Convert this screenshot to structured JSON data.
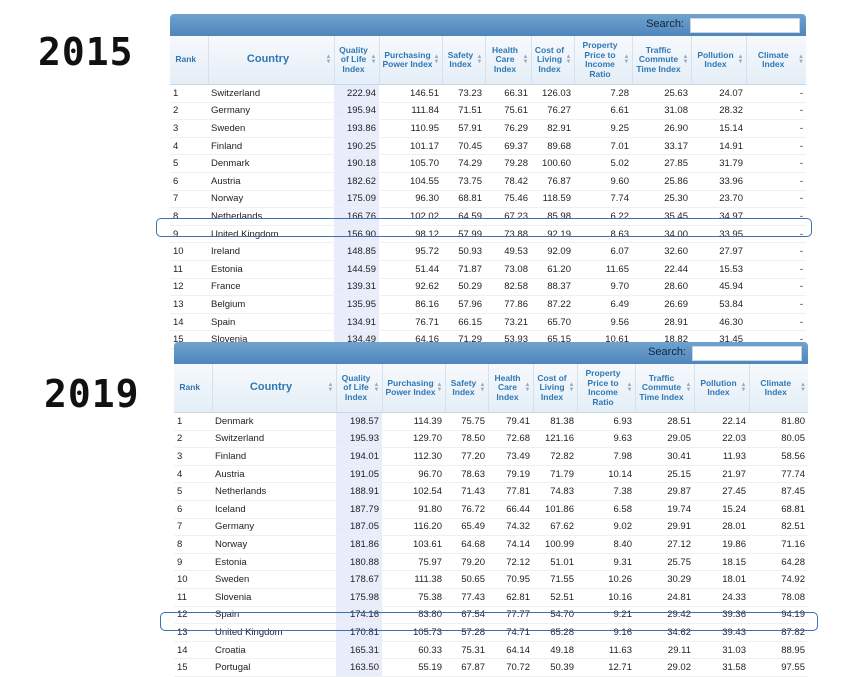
{
  "years": [
    "2015",
    "2019"
  ],
  "search_label": "Search:",
  "columns": [
    {
      "key": "rank",
      "label": "Rank",
      "sortable": false
    },
    {
      "key": "country",
      "label": "Country",
      "sortable": true
    },
    {
      "key": "qol",
      "label": "Quality of Life Index",
      "sortable": true
    },
    {
      "key": "ppi",
      "label": "Purchasing Power Index",
      "sortable": true
    },
    {
      "key": "safety",
      "label": "Safety Index",
      "sortable": true
    },
    {
      "key": "health",
      "label": "Health Care Index",
      "sortable": true
    },
    {
      "key": "col",
      "label": "Cost of Living Index",
      "sortable": true
    },
    {
      "key": "ppti",
      "label": "Property Price to Income Ratio",
      "sortable": true
    },
    {
      "key": "traffic",
      "label": "Traffic Commute Time Index",
      "sortable": true
    },
    {
      "key": "pollution",
      "label": "Pollution Index",
      "sortable": true
    },
    {
      "key": "climate",
      "label": "Climate Index",
      "sortable": true
    }
  ],
  "tables": [
    {
      "year": "2015",
      "highlight_row": 9,
      "rows": [
        [
          "1",
          "Switzerland",
          "222.94",
          "146.51",
          "73.23",
          "66.31",
          "126.03",
          "7.28",
          "25.63",
          "24.07",
          "-"
        ],
        [
          "2",
          "Germany",
          "195.94",
          "111.84",
          "71.51",
          "75.61",
          "76.27",
          "6.61",
          "31.08",
          "28.32",
          "-"
        ],
        [
          "3",
          "Sweden",
          "193.86",
          "110.95",
          "57.91",
          "76.29",
          "82.91",
          "9.25",
          "26.90",
          "15.14",
          "-"
        ],
        [
          "4",
          "Finland",
          "190.25",
          "101.17",
          "70.45",
          "69.37",
          "89.68",
          "7.01",
          "33.17",
          "14.91",
          "-"
        ],
        [
          "5",
          "Denmark",
          "190.18",
          "105.70",
          "74.29",
          "79.28",
          "100.60",
          "5.02",
          "27.85",
          "31.79",
          "-"
        ],
        [
          "6",
          "Austria",
          "182.62",
          "104.55",
          "73.75",
          "78.42",
          "76.87",
          "9.60",
          "25.86",
          "33.96",
          "-"
        ],
        [
          "7",
          "Norway",
          "175.09",
          "96.30",
          "68.81",
          "75.46",
          "118.59",
          "7.74",
          "25.30",
          "23.70",
          "-"
        ],
        [
          "8",
          "Netherlands",
          "166.76",
          "102.02",
          "64.59",
          "67.23",
          "85.98",
          "6.22",
          "35.45",
          "34.97",
          "-"
        ],
        [
          "9",
          "United Kingdom",
          "156.90",
          "98.12",
          "57.99",
          "73.88",
          "92.19",
          "8.63",
          "34.00",
          "33.95",
          "-"
        ],
        [
          "10",
          "Ireland",
          "148.85",
          "95.72",
          "50.93",
          "49.53",
          "92.09",
          "6.07",
          "32.60",
          "27.97",
          "-"
        ],
        [
          "11",
          "Estonia",
          "144.59",
          "51.44",
          "71.87",
          "73.08",
          "61.20",
          "11.65",
          "22.44",
          "15.53",
          "-"
        ],
        [
          "12",
          "France",
          "139.31",
          "92.62",
          "50.29",
          "82.58",
          "88.37",
          "9.70",
          "28.60",
          "45.94",
          "-"
        ],
        [
          "13",
          "Belgium",
          "135.95",
          "86.16",
          "57.96",
          "77.86",
          "87.22",
          "6.49",
          "26.69",
          "53.84",
          "-"
        ],
        [
          "14",
          "Spain",
          "134.91",
          "76.71",
          "66.15",
          "73.21",
          "65.70",
          "9.56",
          "28.91",
          "46.30",
          "-"
        ],
        [
          "15",
          "Slovenia",
          "134.49",
          "64.16",
          "71.29",
          "53.93",
          "65.15",
          "10.61",
          "18.82",
          "31.45",
          "-"
        ]
      ]
    },
    {
      "year": "2019",
      "highlight_row": 13,
      "rows": [
        [
          "1",
          "Denmark",
          "198.57",
          "114.39",
          "75.75",
          "79.41",
          "81.38",
          "6.93",
          "28.51",
          "22.14",
          "81.80"
        ],
        [
          "2",
          "Switzerland",
          "195.93",
          "129.70",
          "78.50",
          "72.68",
          "121.16",
          "9.63",
          "29.05",
          "22.03",
          "80.05"
        ],
        [
          "3",
          "Finland",
          "194.01",
          "112.30",
          "77.20",
          "73.49",
          "72.82",
          "7.98",
          "30.41",
          "11.93",
          "58.56"
        ],
        [
          "4",
          "Austria",
          "191.05",
          "96.70",
          "78.63",
          "79.19",
          "71.79",
          "10.14",
          "25.15",
          "21.97",
          "77.74"
        ],
        [
          "5",
          "Netherlands",
          "188.91",
          "102.54",
          "71.43",
          "77.81",
          "74.83",
          "7.38",
          "29.87",
          "27.45",
          "87.45"
        ],
        [
          "6",
          "Iceland",
          "187.79",
          "91.80",
          "76.72",
          "66.44",
          "101.86",
          "6.58",
          "19.74",
          "15.24",
          "68.81"
        ],
        [
          "7",
          "Germany",
          "187.05",
          "116.20",
          "65.49",
          "74.32",
          "67.62",
          "9.02",
          "29.91",
          "28.01",
          "82.51"
        ],
        [
          "8",
          "Norway",
          "181.86",
          "103.61",
          "64.68",
          "74.14",
          "100.99",
          "8.40",
          "27.12",
          "19.86",
          "71.16"
        ],
        [
          "9",
          "Estonia",
          "180.88",
          "75.97",
          "79.20",
          "72.12",
          "51.01",
          "9.31",
          "25.75",
          "18.15",
          "64.28"
        ],
        [
          "10",
          "Sweden",
          "178.67",
          "111.38",
          "50.65",
          "70.95",
          "71.55",
          "10.26",
          "30.29",
          "18.01",
          "74.92"
        ],
        [
          "11",
          "Slovenia",
          "175.98",
          "75.38",
          "77.43",
          "62.81",
          "52.51",
          "10.16",
          "24.81",
          "24.33",
          "78.08"
        ],
        [
          "12",
          "Spain",
          "174.16",
          "83.80",
          "67.54",
          "77.77",
          "54.70",
          "9.21",
          "29.42",
          "39.36",
          "94.19"
        ],
        [
          "13",
          "United Kingdom",
          "170.81",
          "105.73",
          "57.28",
          "74.71",
          "65.28",
          "9.16",
          "34.62",
          "39.43",
          "87.82"
        ],
        [
          "14",
          "Croatia",
          "165.31",
          "60.33",
          "75.31",
          "64.14",
          "49.18",
          "11.63",
          "29.11",
          "31.03",
          "88.95"
        ],
        [
          "15",
          "Portugal",
          "163.50",
          "55.19",
          "67.87",
          "70.72",
          "50.39",
          "12.71",
          "29.02",
          "31.58",
          "97.55"
        ]
      ]
    }
  ]
}
